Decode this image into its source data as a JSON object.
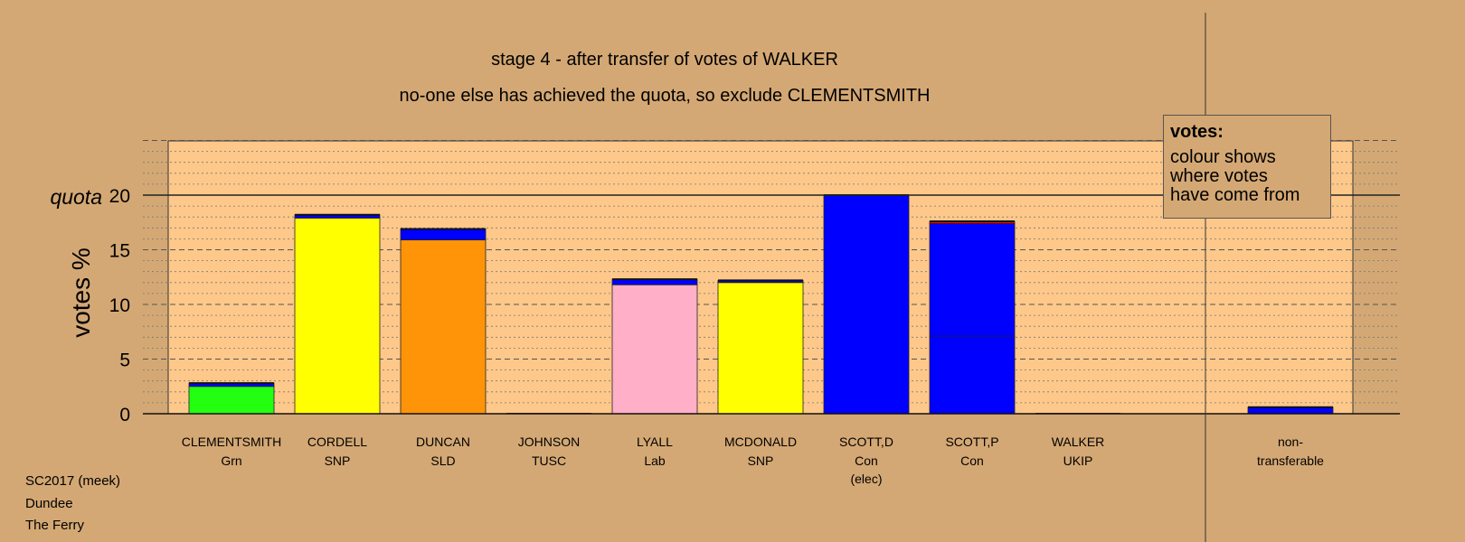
{
  "chart_data": {
    "type": "bar",
    "title": "stage 4 - after transfer of votes of WALKER",
    "subtitle": "no-one else has achieved the quota, so exclude CLEMENTSMITH",
    "ylabel": "votes %",
    "quota_label": "quota",
    "quota": 20,
    "ylim": [
      0,
      25
    ],
    "yticks": [
      0,
      5,
      10,
      15,
      20
    ],
    "grid": true,
    "candidates": [
      {
        "name": "CLEMENTSMITH",
        "party": "Grn",
        "note": "",
        "segments": [
          {
            "value": 2.5,
            "color": "#22ff11"
          },
          {
            "value": 0.3,
            "color": "#0000ff"
          }
        ]
      },
      {
        "name": "CORDELL",
        "party": "SNP",
        "note": "",
        "segments": [
          {
            "value": 17.9,
            "color": "#ffff00"
          },
          {
            "value": 0.3,
            "color": "#0000ff"
          }
        ]
      },
      {
        "name": "DUNCAN",
        "party": "SLD",
        "note": "",
        "segments": [
          {
            "value": 15.9,
            "color": "#ff9408"
          },
          {
            "value": 1.0,
            "color": "#0000ff"
          }
        ]
      },
      {
        "name": "JOHNSON",
        "party": "TUSC",
        "note": "",
        "segments": []
      },
      {
        "name": "LYALL",
        "party": "Lab",
        "note": "",
        "segments": [
          {
            "value": 11.8,
            "color": "#ffafc8"
          },
          {
            "value": 0.5,
            "color": "#0000ff"
          }
        ]
      },
      {
        "name": "MCDONALD",
        "party": "SNP",
        "note": "",
        "segments": [
          {
            "value": 12.0,
            "color": "#ffff00"
          },
          {
            "value": 0.2,
            "color": "#0000ff"
          }
        ]
      },
      {
        "name": "SCOTT,D",
        "party": "Con",
        "note": "(elec)",
        "segments": [
          {
            "value": 20.0,
            "color": "#0000ff"
          }
        ]
      },
      {
        "name": "SCOTT,P",
        "party": "Con",
        "note": "",
        "segments": [
          {
            "value": 7.1,
            "color": "#0000ff"
          },
          {
            "value": 10.3,
            "color": "#0000ff"
          },
          {
            "value": 0.2,
            "color": "#ff0000"
          }
        ]
      },
      {
        "name": "WALKER",
        "party": "UKIP",
        "note": "",
        "segments": []
      }
    ],
    "nontransferable": {
      "label1": "non-",
      "label2": "transferable",
      "segments": [
        {
          "value": 0.6,
          "color": "#0000ff"
        }
      ]
    }
  },
  "legend": {
    "title": "votes:",
    "lines": [
      "colour shows",
      "where votes",
      "have come from"
    ]
  },
  "footer": {
    "line1": "SC2017 (meek)",
    "line2": "Dundee",
    "line3": "The Ferry"
  }
}
